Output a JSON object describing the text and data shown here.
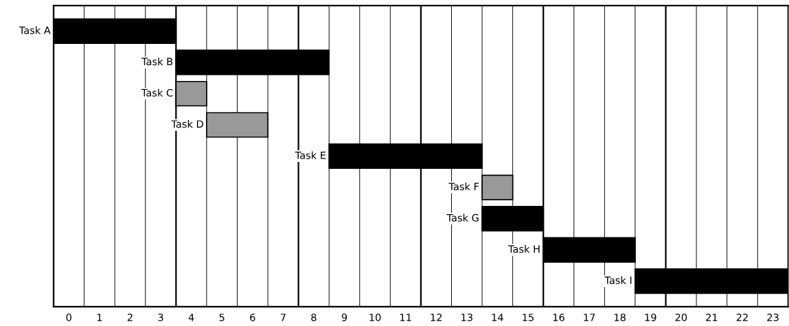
{
  "chart_data": {
    "type": "bar",
    "orientation": "horizontal",
    "categories": [
      "Task A",
      "Task B",
      "Task C",
      "Task D",
      "Task E",
      "Task F",
      "Task G",
      "Task H",
      "Task I"
    ],
    "base": [
      0,
      4,
      4,
      5,
      9,
      14,
      14,
      16,
      19
    ],
    "values": [
      4,
      5,
      1,
      2,
      5,
      1,
      2,
      3,
      5
    ],
    "colors": [
      "#000000",
      "#000000",
      "#999999",
      "#999999",
      "#000000",
      "#999999",
      "#000000",
      "#000000",
      "#000000"
    ],
    "xlim": [
      0,
      24
    ],
    "xticks": [
      {
        "value": 0,
        "label": null
      },
      {
        "value": 0.5,
        "label": "0"
      },
      {
        "value": 1,
        "label": null
      },
      {
        "value": 1.5,
        "label": "1"
      },
      {
        "value": 2,
        "label": null
      },
      {
        "value": 2.5,
        "label": "2"
      },
      {
        "value": 3,
        "label": null
      },
      {
        "value": 3.5,
        "label": "3"
      },
      {
        "value": 4,
        "label": null
      },
      {
        "value": 4.5,
        "label": "4"
      },
      {
        "value": 5,
        "label": null
      },
      {
        "value": 5.5,
        "label": "5"
      },
      {
        "value": 6,
        "label": null
      },
      {
        "value": 6.5,
        "label": "6"
      },
      {
        "value": 7,
        "label": null
      },
      {
        "value": 7.5,
        "label": "7"
      },
      {
        "value": 8,
        "label": null
      },
      {
        "value": 8.5,
        "label": "8"
      },
      {
        "value": 9,
        "label": null
      },
      {
        "value": 9.5,
        "label": "9"
      },
      {
        "value": 10,
        "label": null
      },
      {
        "value": 10.5,
        "label": "10"
      },
      {
        "value": 11,
        "label": null
      },
      {
        "value": 11.5,
        "label": "11"
      },
      {
        "value": 12,
        "label": null
      },
      {
        "value": 12.5,
        "label": "12"
      },
      {
        "value": 13,
        "label": null
      },
      {
        "value": 13.5,
        "label": "13"
      },
      {
        "value": 14,
        "label": null
      },
      {
        "value": 14.5,
        "label": "14"
      },
      {
        "value": 15,
        "label": null
      },
      {
        "value": 15.5,
        "label": "15"
      },
      {
        "value": 16,
        "label": null
      },
      {
        "value": 16.5,
        "label": "16"
      },
      {
        "value": 17,
        "label": null
      },
      {
        "value": 17.5,
        "label": "17"
      },
      {
        "value": 18,
        "label": null
      },
      {
        "value": 18.5,
        "label": "18"
      },
      {
        "value": 19,
        "label": null
      },
      {
        "value": 19.5,
        "label": "19"
      },
      {
        "value": 20,
        "label": null
      },
      {
        "value": 20.5,
        "label": "20"
      },
      {
        "value": 21,
        "label": null
      },
      {
        "value": 21.5,
        "label": "21"
      },
      {
        "value": 22,
        "label": null
      },
      {
        "value": 22.5,
        "label": "22"
      },
      {
        "value": 23,
        "label": null
      },
      {
        "value": 23.5,
        "label": "23"
      },
      {
        "value": 24,
        "label": null
      }
    ],
    "grid": "x",
    "tick_labels": "x"
  }
}
